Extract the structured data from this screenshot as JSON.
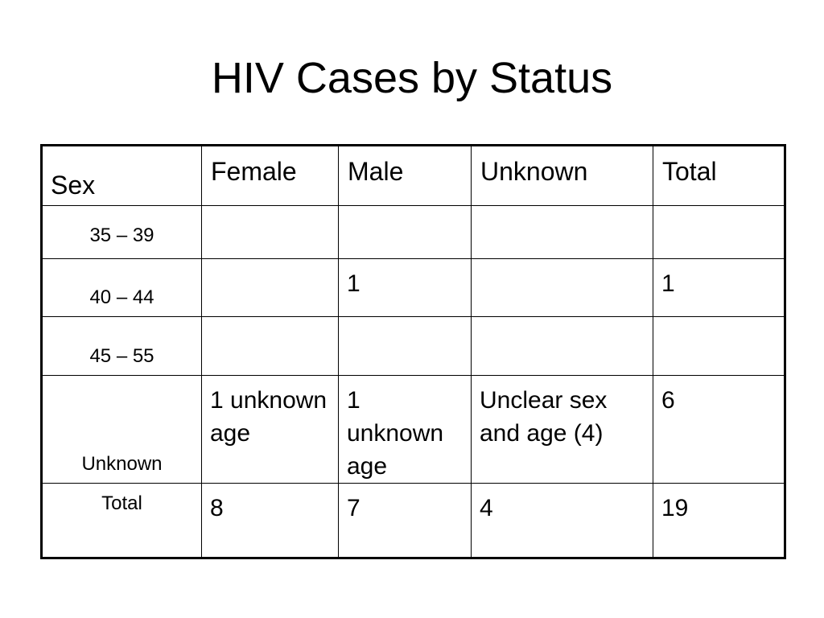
{
  "title": "HIV Cases by Status",
  "table": {
    "header": {
      "corner": "Sex",
      "columns": [
        "Female",
        "Male",
        "Unknown",
        "Total"
      ]
    },
    "rows": [
      {
        "label": "35 – 39",
        "cells": [
          "",
          "",
          "",
          ""
        ]
      },
      {
        "label": "40 – 44",
        "cells": [
          "",
          "1",
          "",
          "1"
        ]
      },
      {
        "label": "45 – 55",
        "cells": [
          "",
          "",
          "",
          ""
        ]
      },
      {
        "label": "Unknown",
        "cells": [
          "1 unknown age",
          "1 unknown age",
          "Unclear sex and age (4)",
          "6"
        ]
      },
      {
        "label": "Total",
        "cells": [
          "8",
          "7",
          "4",
          "19"
        ]
      }
    ]
  }
}
